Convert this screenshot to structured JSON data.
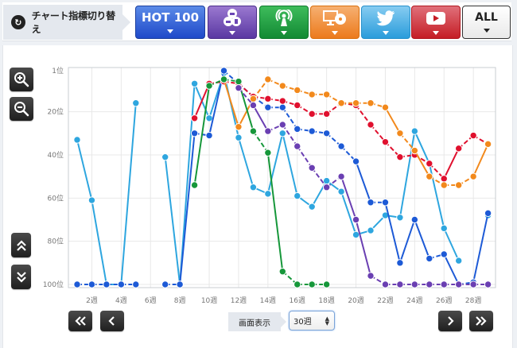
{
  "header": {
    "switch_label": "チャート指標切り替え",
    "switch_icon": "refresh-icon",
    "buttons": [
      {
        "id": "hot100",
        "label": "HOT 100",
        "color": "#2f5fd8"
      },
      {
        "id": "purchase",
        "icon": "users-purchase-icon",
        "color": "#6b46b5"
      },
      {
        "id": "radio",
        "icon": "radio-antenna-icon",
        "color": "#1f9a3f"
      },
      {
        "id": "media",
        "icon": "pc-cd-icon",
        "color": "#f08a2c"
      },
      {
        "id": "twitter",
        "icon": "twitter-bird-icon",
        "color": "#3aa6e2"
      },
      {
        "id": "youtube",
        "icon": "youtube-play-icon",
        "color": "#d0303a"
      },
      {
        "id": "all",
        "label": "ALL",
        "color": "#ffffff"
      }
    ]
  },
  "controls": {
    "zoom_in": "zoom-in-icon",
    "zoom_out": "zoom-out-icon",
    "scroll_up": "double-chevron-up-icon",
    "scroll_down": "double-chevron-down-icon",
    "first": "«",
    "prev": "‹",
    "next": "›",
    "last": "»",
    "display_label": "画面表示",
    "display_value": "30週"
  },
  "chart_data": {
    "type": "line",
    "title": "",
    "xlabel": "",
    "ylabel": "",
    "y_inverted": true,
    "ylim": [
      1,
      100
    ],
    "y_ticks": [
      "1位",
      "20位",
      "40位",
      "60位",
      "80位",
      "100位"
    ],
    "y_tick_values": [
      1,
      20,
      40,
      60,
      80,
      100
    ],
    "x_ticks": [
      "2週",
      "4週",
      "6週",
      "8週",
      "10週",
      "12週",
      "14週",
      "16週",
      "18週",
      "20週",
      "22週",
      "24週",
      "26週",
      "28週"
    ],
    "x": [
      1,
      2,
      3,
      4,
      5,
      6,
      7,
      8,
      9,
      10,
      11,
      12,
      13,
      14,
      15,
      16,
      17,
      18,
      19,
      20,
      21,
      22,
      23,
      24,
      25,
      26,
      27,
      28,
      29
    ],
    "grid": true,
    "series": [
      {
        "name": "Twitter",
        "color": "#2ea6df",
        "dashed": false,
        "values": [
          33,
          61,
          100,
          100,
          16,
          null,
          41,
          100,
          7,
          23,
          2,
          32,
          55,
          58,
          30,
          59,
          64,
          52,
          57,
          77,
          75,
          68,
          69,
          29,
          44,
          74,
          89,
          null,
          68
        ]
      },
      {
        "name": "HOT 100",
        "color": "#1d5ad6",
        "dashed": true,
        "values": [
          100,
          100,
          100,
          100,
          100,
          null,
          100,
          100,
          30,
          31,
          1,
          7,
          13,
          18,
          18,
          28,
          29,
          30,
          36,
          43,
          62,
          62,
          90,
          70,
          88,
          86,
          100,
          99,
          67
        ]
      },
      {
        "name": "YouTube",
        "color": "#e0102e",
        "dashed": true,
        "values": [
          null,
          null,
          null,
          null,
          null,
          null,
          null,
          null,
          23,
          7,
          6,
          7,
          13,
          14,
          15,
          17,
          21,
          21,
          16,
          17,
          26,
          34,
          41,
          40,
          44,
          51,
          37,
          31,
          35
        ]
      },
      {
        "name": "PC/CD",
        "color": "#f2891c",
        "dashed": true,
        "values": [
          null,
          null,
          null,
          null,
          null,
          null,
          null,
          null,
          null,
          null,
          5,
          27,
          14,
          5,
          8,
          10,
          12,
          12,
          16,
          16,
          16,
          18,
          30,
          38,
          50,
          54,
          54,
          50,
          35
        ]
      },
      {
        "name": "Radio",
        "color": "#16973a",
        "dashed": true,
        "values": [
          null,
          null,
          null,
          null,
          null,
          null,
          null,
          null,
          54,
          8,
          5,
          6,
          29,
          39,
          94,
          100,
          100,
          100,
          null,
          null,
          null,
          null,
          null,
          null,
          null,
          null,
          null,
          null,
          null
        ]
      },
      {
        "name": "Purchase",
        "color": "#6a3fb2",
        "dashed": true,
        "values": [
          null,
          null,
          null,
          null,
          null,
          null,
          null,
          null,
          null,
          null,
          null,
          9,
          17,
          29,
          26,
          36,
          46,
          55,
          50,
          70,
          96,
          100,
          100,
          100,
          100,
          100,
          100,
          100,
          100
        ]
      }
    ]
  }
}
